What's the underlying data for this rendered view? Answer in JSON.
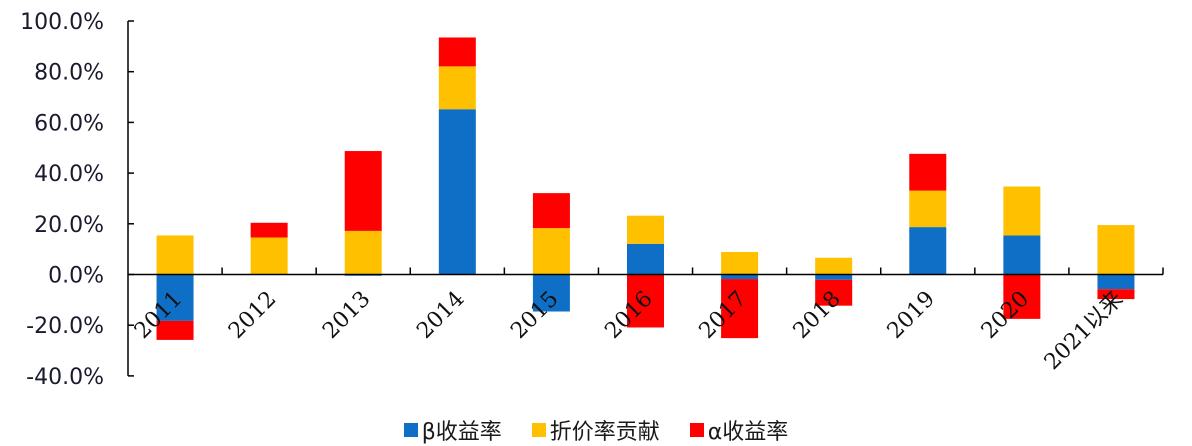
{
  "chart_data": {
    "type": "bar",
    "stacked": true,
    "title": "",
    "xlabel": "",
    "ylabel": "",
    "ylim": [
      -40,
      100
    ],
    "yticks": [
      "100.0%",
      "80.0%",
      "60.0%",
      "40.0%",
      "20.0%",
      "0.0%",
      "-20.0%",
      "-40.0%"
    ],
    "ytick_values": [
      100,
      80,
      60,
      40,
      20,
      0,
      -20,
      -40
    ],
    "grid": false,
    "legend_position": "bottom",
    "categories": [
      "2011",
      "2012",
      "2013",
      "2014",
      "2015",
      "2016",
      "2017",
      "2018",
      "2019",
      "2020",
      "2021以来"
    ],
    "series": [
      {
        "name": "β收益率",
        "color": "#0f6fc6",
        "values": [
          -18.3,
          0.0,
          -0.5,
          65.2,
          -14.6,
          12.1,
          -1.8,
          -2.1,
          18.7,
          15.4,
          -5.8
        ]
      },
      {
        "name": "折价率贡献",
        "color": "#ffc000",
        "values": [
          15.4,
          14.6,
          17.2,
          16.9,
          18.3,
          11.1,
          8.9,
          6.6,
          14.4,
          19.3,
          19.5
        ]
      },
      {
        "name": "α收益率",
        "color": "#ff0000",
        "values": [
          -7.5,
          5.8,
          31.5,
          11.4,
          13.8,
          -20.9,
          -23.3,
          -10.2,
          14.5,
          -17.5,
          -3.9
        ]
      }
    ]
  },
  "legend": {
    "items": [
      {
        "label": "β收益率",
        "color": "#0f6fc6"
      },
      {
        "label": "折价率贡献",
        "color": "#ffc000"
      },
      {
        "label": "α收益率",
        "color": "#ff0000"
      }
    ]
  }
}
